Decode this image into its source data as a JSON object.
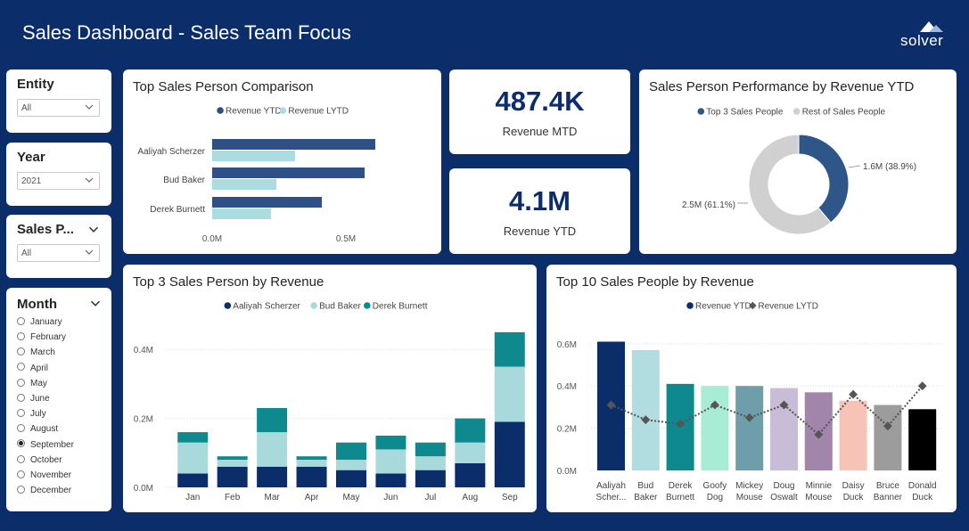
{
  "header": {
    "title": "Sales Dashboard - Sales Team Focus",
    "logo_text": "solver"
  },
  "slicers": {
    "entity": {
      "label": "Entity",
      "value": "All"
    },
    "year": {
      "label": "Year",
      "value": "2021"
    },
    "sales_person": {
      "label": "Sales P...",
      "value": "All"
    },
    "month": {
      "label": "Month",
      "options": [
        "January",
        "February",
        "March",
        "April",
        "May",
        "June",
        "July",
        "August",
        "September",
        "October",
        "November",
        "December"
      ],
      "selected": "September"
    }
  },
  "kpis": {
    "mtd": {
      "value": "487.4K",
      "label": "Revenue MTD"
    },
    "ytd": {
      "value": "4.1M",
      "label": "Revenue YTD"
    }
  },
  "colors": {
    "navy": "#0b2e6b",
    "teal_light": "#a8dadc",
    "teal": "#0e8a8f",
    "bar_dark": "#2e5086",
    "bar_light": "#a9dde0",
    "donut_blue": "#2f5689",
    "donut_grey": "#d0d0d0"
  },
  "chart_data": [
    {
      "id": "comparison",
      "type": "bar",
      "orientation": "horizontal",
      "title": "Top Sales Person Comparison",
      "categories": [
        "Aaliyah Scherzer",
        "Bud Baker",
        "Derek Burnett"
      ],
      "series": [
        {
          "name": "Revenue YTD",
          "values": [
            0.61,
            0.57,
            0.41
          ]
        },
        {
          "name": "Revenue LYTD",
          "values": [
            0.31,
            0.24,
            0.22
          ]
        }
      ],
      "xticks": [
        "0.0M",
        "0.5M"
      ],
      "xlim": [
        0,
        0.8
      ],
      "legend": "top-center"
    },
    {
      "id": "donut",
      "type": "pie",
      "title": "Sales Person Performance by Revenue YTD",
      "labels": [
        "Top 3 Sales People",
        "Rest of Sales People"
      ],
      "values": [
        38.9,
        61.1
      ],
      "data_labels": [
        "1.6M (38.9%)",
        "2.5M (61.1%)"
      ],
      "legend": "top-center"
    },
    {
      "id": "stacked",
      "type": "bar",
      "stacked": true,
      "title": "Top 3 Sales Person by Revenue",
      "categories": [
        "Jan",
        "Feb",
        "Mar",
        "Apr",
        "May",
        "Jun",
        "Jul",
        "Aug",
        "Sep"
      ],
      "series": [
        {
          "name": "Aaliyah Scherzer",
          "values": [
            0.04,
            0.06,
            0.06,
            0.06,
            0.05,
            0.04,
            0.05,
            0.07,
            0.19
          ]
        },
        {
          "name": "Bud Baker",
          "values": [
            0.09,
            0.02,
            0.1,
            0.02,
            0.03,
            0.07,
            0.04,
            0.06,
            0.16
          ]
        },
        {
          "name": "Derek Burnett",
          "values": [
            0.03,
            0.01,
            0.07,
            0.01,
            0.05,
            0.04,
            0.04,
            0.07,
            0.1
          ]
        }
      ],
      "yticks": [
        "0.0M",
        "0.2M",
        "0.4M"
      ],
      "ylim": [
        0,
        0.46
      ],
      "legend": "top-center"
    },
    {
      "id": "top10",
      "type": "bar",
      "title": "Top 10 Sales People by Revenue",
      "categories": [
        "Aaliyah Scher...",
        "Bud Baker",
        "Derek Burnett",
        "Goofy Dog",
        "Mickey Mouse",
        "Doug Oswalt",
        "Minnie Mouse",
        "Daisy Duck",
        "Bruce Banner",
        "Donald Duck"
      ],
      "category_lines": [
        [
          "Aaliyah",
          "Scher..."
        ],
        [
          "Bud",
          "Baker"
        ],
        [
          "Derek",
          "Burnett"
        ],
        [
          "Goofy",
          "Dog"
        ],
        [
          "Mickey",
          "Mouse"
        ],
        [
          "Doug",
          "Oswalt"
        ],
        [
          "Minnie",
          "Mouse"
        ],
        [
          "Daisy",
          "Duck"
        ],
        [
          "Bruce",
          "Banner"
        ],
        [
          "Donald",
          "Duck"
        ]
      ],
      "series": [
        {
          "name": "Revenue YTD",
          "kind": "bar",
          "values": [
            0.61,
            0.57,
            0.41,
            0.4,
            0.4,
            0.39,
            0.37,
            0.33,
            0.31,
            0.29
          ],
          "colors": [
            "#0b2e6b",
            "#b1dde0",
            "#0e8a8f",
            "#a9ecd6",
            "#6f9eab",
            "#c9bcd6",
            "#a285aa",
            "#f6c3b6",
            "#9c9c9c",
            "#000000"
          ]
        },
        {
          "name": "Revenue LYTD",
          "kind": "line",
          "values": [
            0.31,
            0.24,
            0.22,
            0.31,
            0.25,
            0.31,
            0.17,
            0.36,
            0.21,
            0.4
          ]
        }
      ],
      "yticks": [
        "0.0M",
        "0.2M",
        "0.4M",
        "0.6M"
      ],
      "ylim": [
        0,
        0.65
      ],
      "legend": "top-center"
    }
  ]
}
